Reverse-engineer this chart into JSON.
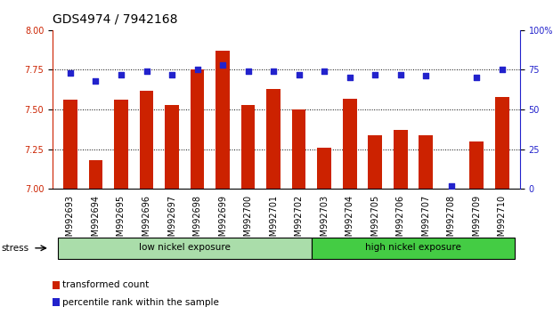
{
  "title": "GDS4974 / 7942168",
  "samples": [
    "GSM992693",
    "GSM992694",
    "GSM992695",
    "GSM992696",
    "GSM992697",
    "GSM992698",
    "GSM992699",
    "GSM992700",
    "GSM992701",
    "GSM992702",
    "GSM992703",
    "GSM992704",
    "GSM992705",
    "GSM992706",
    "GSM992707",
    "GSM992708",
    "GSM992709",
    "GSM992710"
  ],
  "bar_values": [
    7.56,
    7.18,
    7.56,
    7.62,
    7.53,
    7.75,
    7.87,
    7.53,
    7.63,
    7.5,
    7.26,
    7.57,
    7.34,
    7.37,
    7.34,
    7.002,
    7.3,
    7.58
  ],
  "dot_values": [
    73,
    68,
    72,
    74,
    72,
    75,
    78,
    74,
    74,
    72,
    74,
    70,
    72,
    72,
    71,
    2,
    70,
    75
  ],
  "ylim_left": [
    7.0,
    8.0
  ],
  "ylim_right": [
    0,
    100
  ],
  "yticks_left": [
    7.0,
    7.25,
    7.5,
    7.75,
    8.0
  ],
  "yticks_right": [
    0,
    25,
    50,
    75,
    100
  ],
  "ytick_labels_right": [
    "0",
    "25",
    "50",
    "75",
    "100%"
  ],
  "bar_color": "#cc2200",
  "dot_color": "#2222cc",
  "group1_label": "low nickel exposure",
  "group2_label": "high nickel exposure",
  "group1_count": 10,
  "group2_count": 8,
  "group1_color": "#aaddaa",
  "group2_color": "#44cc44",
  "stress_label": "stress",
  "legend1": "transformed count",
  "legend2": "percentile rank within the sample",
  "background_color": "#ffffff",
  "title_fontsize": 10,
  "tick_fontsize": 7,
  "bar_width": 0.55
}
